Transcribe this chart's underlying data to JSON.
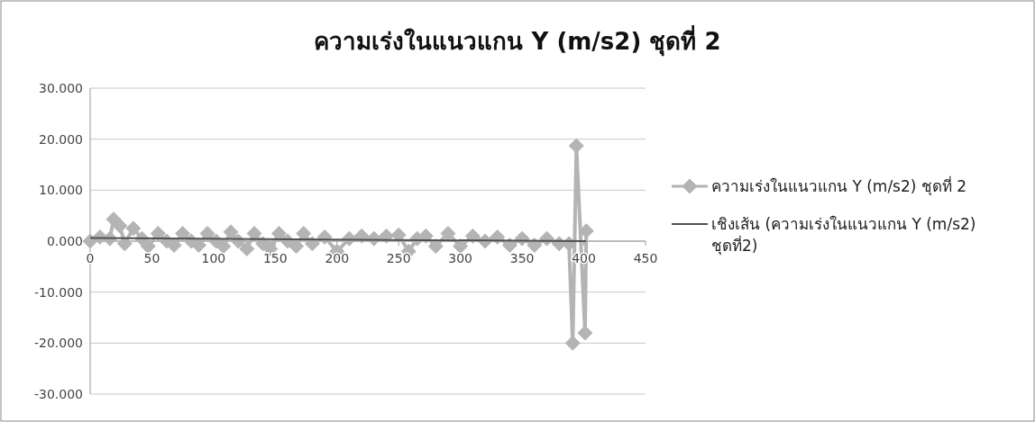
{
  "chart_data": {
    "type": "line",
    "title": "ความเร่งในแนวแกน Y (m/s2) ชุดที่ 2",
    "series": [
      {
        "name": "ความเร่งในแนวแกน Y (m/s2) ชุดที่ 2",
        "color": "#b4b4b4",
        "marker": "diamond",
        "x": [
          0,
          8,
          16,
          19,
          24,
          28,
          35,
          42,
          47,
          55,
          62,
          68,
          75,
          82,
          88,
          95,
          102,
          108,
          114,
          120,
          127,
          133,
          140,
          146,
          153,
          160,
          167,
          173,
          180,
          190,
          200,
          210,
          220,
          230,
          240,
          250,
          258,
          265,
          272,
          280,
          290,
          300,
          310,
          320,
          330,
          340,
          350,
          360,
          370,
          380,
          388,
          391,
          394,
          401,
          402
        ],
        "values": [
          0.0,
          0.8,
          0.5,
          4.3,
          3.0,
          -0.5,
          2.5,
          0.5,
          -1.0,
          1.5,
          0.0,
          -0.8,
          1.5,
          0.0,
          -0.8,
          1.5,
          0.0,
          -1.0,
          1.8,
          0.0,
          -1.5,
          1.5,
          -0.5,
          -1.5,
          1.5,
          0.0,
          -1.0,
          1.5,
          -0.5,
          0.8,
          -2.0,
          0.5,
          1.0,
          0.5,
          1.0,
          1.2,
          -2.0,
          0.5,
          1.0,
          -1.0,
          1.5,
          -1.0,
          1.0,
          0.0,
          0.8,
          -0.8,
          0.5,
          -0.8,
          0.5,
          -0.5,
          -0.5,
          -20.0,
          18.7,
          -18.0,
          2.0
        ]
      },
      {
        "name": "เชิงเส้น (ความเร่งในแนวแกน Y (m/s2) ชุดที่2)",
        "color": "#505050",
        "x": [
          0,
          402
        ],
        "values": [
          0.6,
          0.0
        ]
      }
    ],
    "xlim": [
      0,
      450
    ],
    "xticks": [
      0,
      50,
      100,
      150,
      200,
      250,
      300,
      350,
      400,
      450
    ],
    "ylim": [
      -30,
      30
    ],
    "yticks": [
      {
        "value": -30,
        "label": "-30.000"
      },
      {
        "value": -20,
        "label": "-20.000"
      },
      {
        "value": -10,
        "label": "-10.000"
      },
      {
        "value": 0,
        "label": "0.000"
      },
      {
        "value": 10,
        "label": "10.000"
      },
      {
        "value": 20,
        "label": "20.000"
      },
      {
        "value": 30,
        "label": "30.000"
      }
    ],
    "grid": "y",
    "legend": "right"
  }
}
